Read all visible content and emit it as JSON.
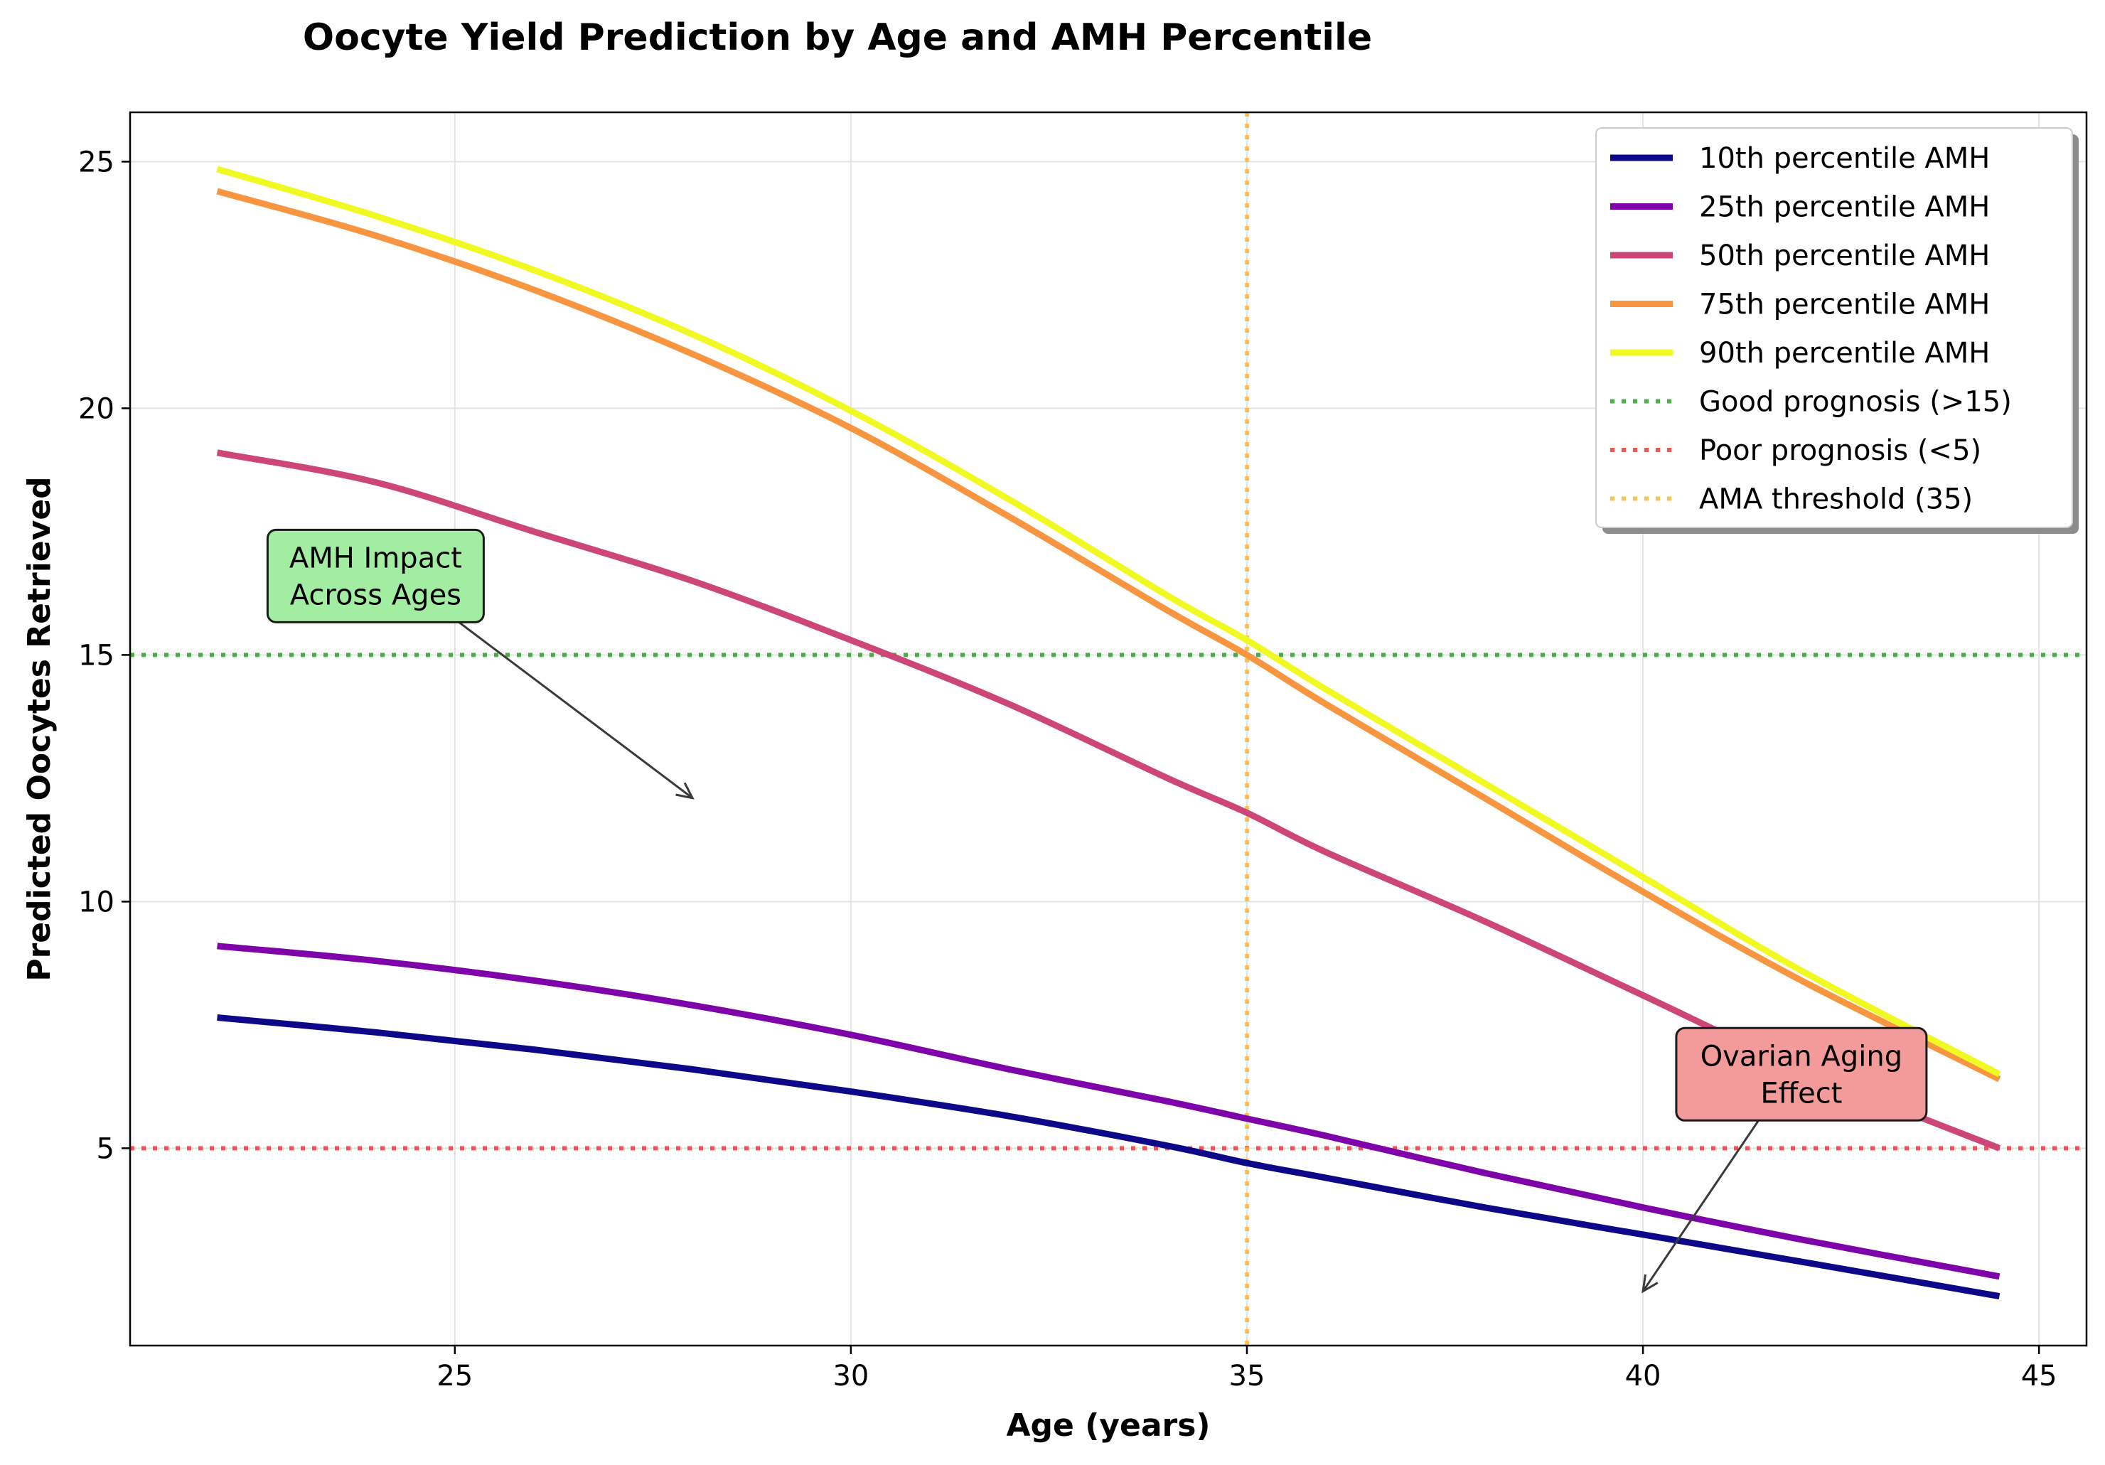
{
  "chart_data": {
    "type": "line",
    "title": "Oocyte Yield Prediction by Age and AMH Percentile",
    "xlabel": "Age (years)",
    "ylabel": "Predicted Oocytes Retrieved",
    "xlim": [
      20.9,
      45.6
    ],
    "ylim": [
      1.0,
      26.0
    ],
    "xticks": [
      25,
      30,
      35,
      40,
      45
    ],
    "yticks": [
      5,
      10,
      15,
      20,
      25
    ],
    "grid": true,
    "legend_position": "top-right",
    "x": [
      22,
      24,
      26,
      28,
      30,
      32,
      34,
      35,
      36,
      38,
      40,
      42,
      44.5
    ],
    "series": [
      {
        "name": "10th percentile AMH",
        "color": "#0d0887",
        "values": [
          7.65,
          7.35,
          7.0,
          6.6,
          6.15,
          5.65,
          5.05,
          4.7,
          4.4,
          3.8,
          3.25,
          2.7,
          2.0
        ]
      },
      {
        "name": "25th percentile AMH",
        "color": "#7e03a8",
        "values": [
          9.1,
          8.8,
          8.4,
          7.9,
          7.3,
          6.6,
          5.95,
          5.6,
          5.25,
          4.5,
          3.8,
          3.15,
          2.4
        ]
      },
      {
        "name": "50th percentile AMH",
        "color": "#cc4778",
        "values": [
          19.1,
          18.5,
          17.5,
          16.5,
          15.3,
          14.0,
          12.5,
          11.8,
          11.0,
          9.6,
          8.1,
          6.6,
          5.0
        ]
      },
      {
        "name": "75th percentile AMH",
        "color": "#f89540",
        "values": [
          24.4,
          23.5,
          22.4,
          21.1,
          19.6,
          17.8,
          15.9,
          15.0,
          14.0,
          12.1,
          10.2,
          8.4,
          6.4
        ]
      },
      {
        "name": "90th percentile AMH",
        "color": "#f0f921",
        "values": [
          24.85,
          23.9,
          22.8,
          21.5,
          19.95,
          18.15,
          16.2,
          15.3,
          14.3,
          12.4,
          10.5,
          8.6,
          6.5
        ]
      }
    ],
    "reference_lines": [
      {
        "name": "Good prognosis (>15)",
        "orientation": "horizontal",
        "value": 15,
        "color": "#2ca02c"
      },
      {
        "name": "Poor prognosis (<5)",
        "orientation": "horizontal",
        "value": 5,
        "color": "#ff3333"
      },
      {
        "name": "AMA threshold (35)",
        "orientation": "vertical",
        "value": 35,
        "color": "#ffb733"
      }
    ],
    "annotations": [
      {
        "lines": [
          "AMH Impact",
          "Across Ages"
        ],
        "text_x": 24.0,
        "text_y": 16.6,
        "arrow_x": 28.0,
        "arrow_y": 12.1,
        "box_color": "#a3eda3"
      },
      {
        "lines": [
          "Ovarian Aging",
          "Effect"
        ],
        "text_x": 42.0,
        "text_y": 6.5,
        "arrow_x": 40.0,
        "arrow_y": 2.1,
        "box_color": "#f39a9a"
      }
    ]
  }
}
